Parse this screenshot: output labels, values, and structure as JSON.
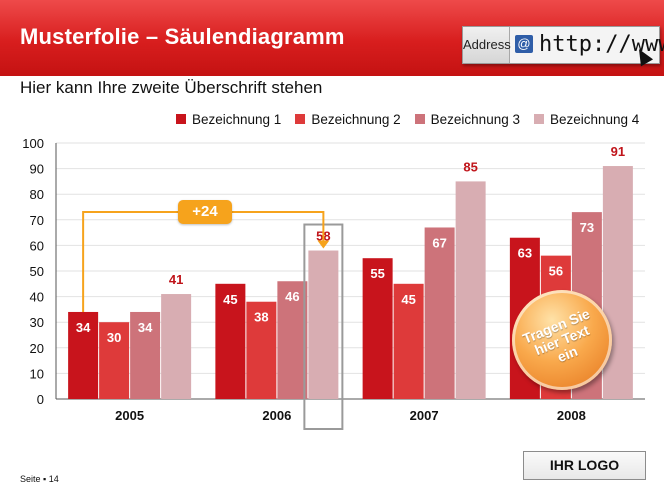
{
  "header": {
    "title": "Musterfolie – Säulendiagramm",
    "address_label": "Address",
    "at_symbol": "@",
    "url_text": "http://www"
  },
  "subtitle": "Hier kann Ihre zweite Überschrift stehen",
  "footer": {
    "page_label": "Seite ▪ 14",
    "logo_text": "IHR LOGO"
  },
  "annotations": {
    "delta_label": "+24",
    "delta_from": {
      "category": "2005",
      "series": 0
    },
    "delta_to": {
      "category": "2006",
      "series": 3
    },
    "highlight": {
      "category": "2006",
      "series": 3
    },
    "callout_text": "Tragen Sie hier Text ein"
  },
  "colors": {
    "header_red": "#d81e1e",
    "series": [
      "#c8141c",
      "#de3a3a",
      "#cd737a",
      "#d8adb2"
    ],
    "label_dark_red": "#c0141a",
    "annotation_orange": "#f6a31c",
    "highlight_gray": "#9a9a9a"
  },
  "chart_data": {
    "type": "bar",
    "title": "",
    "xlabel": "",
    "ylabel": "",
    "ylim": [
      0,
      100
    ],
    "yticks": [
      0,
      10,
      20,
      30,
      40,
      50,
      60,
      70,
      80,
      90,
      100
    ],
    "grid": true,
    "legend_position": "top",
    "categories": [
      "2005",
      "2006",
      "2007",
      "2008"
    ],
    "series": [
      {
        "name": "Bezeichnung 1",
        "values": [
          34,
          45,
          55,
          63
        ]
      },
      {
        "name": "Bezeichnung 2",
        "values": [
          30,
          38,
          45,
          56
        ]
      },
      {
        "name": "Bezeichnung 3",
        "values": [
          34,
          46,
          67,
          73
        ]
      },
      {
        "name": "Bezeichnung 4",
        "values": [
          41,
          58,
          85,
          91
        ]
      }
    ]
  }
}
